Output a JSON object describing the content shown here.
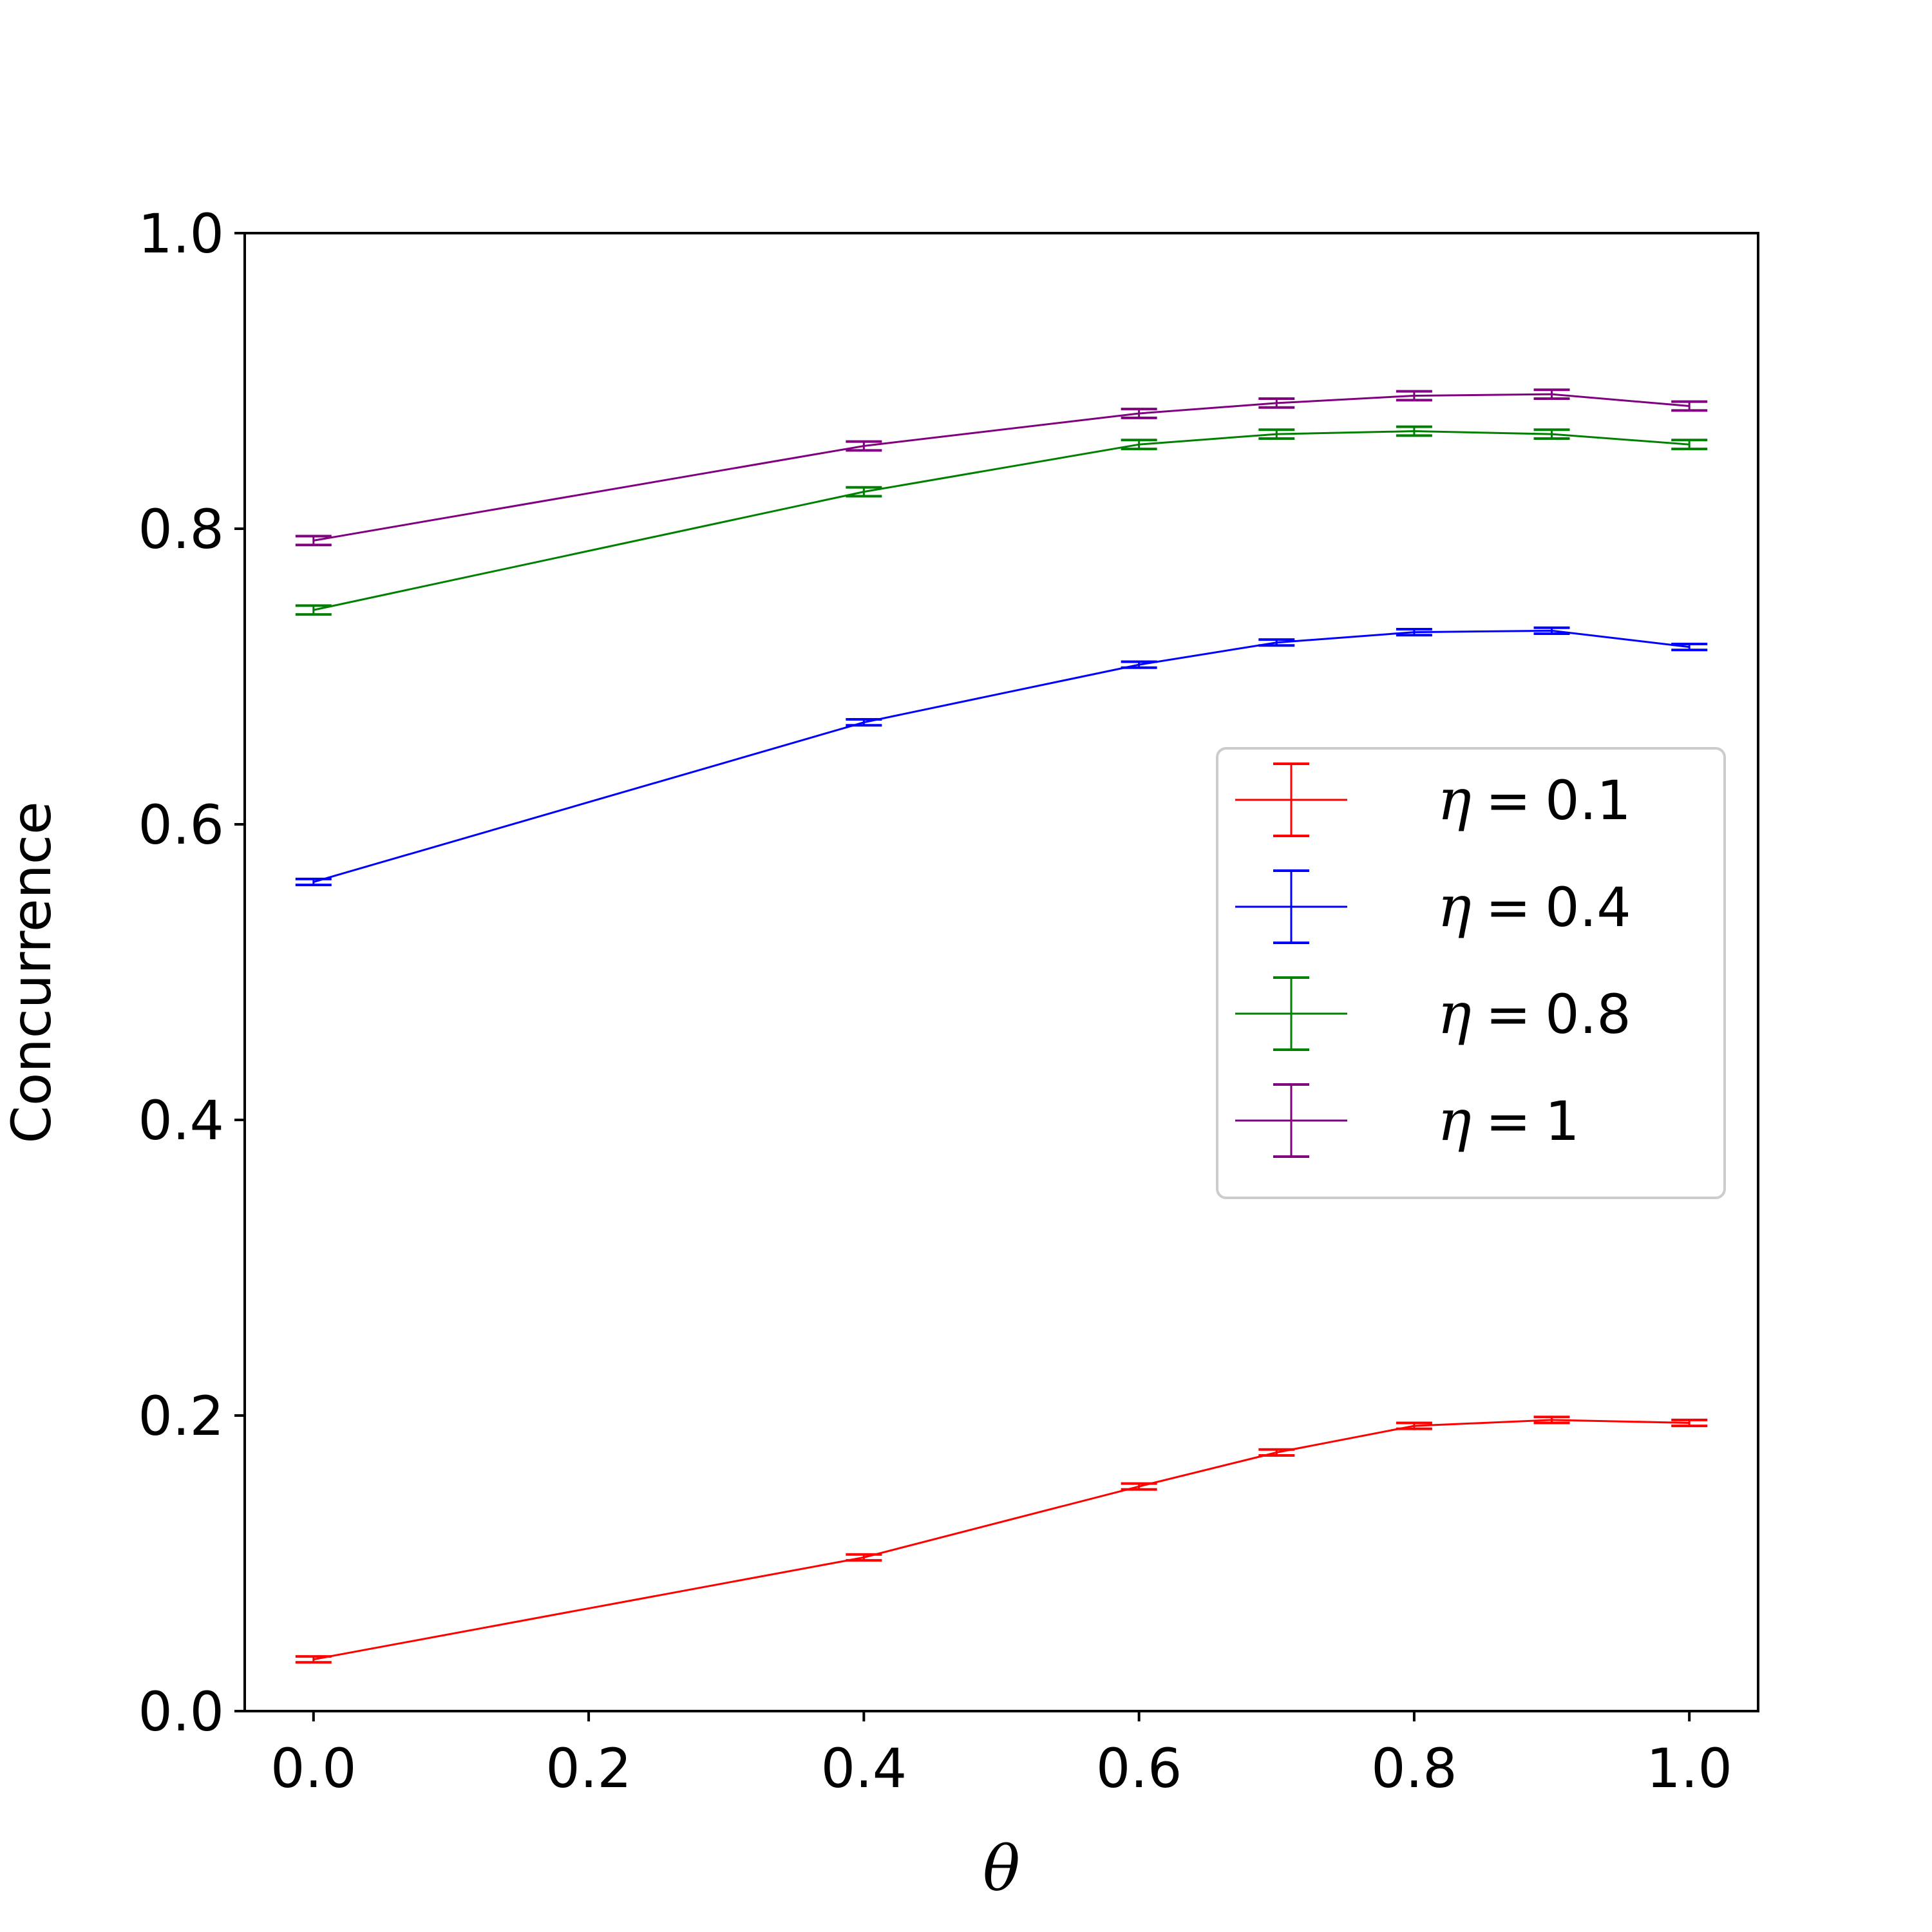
{
  "chart_data": {
    "type": "line",
    "title": "",
    "xlabel": "θ",
    "ylabel": "Concurrence",
    "xlim": [
      -0.05,
      1.05
    ],
    "ylim": [
      0.0,
      1.0
    ],
    "xticks": [
      0.0,
      0.2,
      0.4,
      0.6,
      0.8,
      1.0
    ],
    "yticks": [
      0.0,
      0.2,
      0.4,
      0.6,
      0.8,
      1.0
    ],
    "xtick_labels": [
      "0.0",
      "0.2",
      "0.4",
      "0.6",
      "0.8",
      "1.0"
    ],
    "ytick_labels": [
      "0.0",
      "0.2",
      "0.4",
      "0.6",
      "0.8",
      "1.0"
    ],
    "grid": false,
    "legend_position": "center-right",
    "x": [
      0.0,
      0.4,
      0.6,
      0.7,
      0.8,
      0.9,
      1.0
    ],
    "series": [
      {
        "name": "η = 0.1",
        "symbol": "η",
        "value_text": "0.1",
        "color": "#ff0000",
        "values": [
          0.035,
          0.104,
          0.152,
          0.175,
          0.193,
          0.197,
          0.195
        ],
        "error": 0.002
      },
      {
        "name": "η = 0.4",
        "symbol": "η",
        "value_text": "0.4",
        "color": "#0000ff",
        "values": [
          0.561,
          0.669,
          0.708,
          0.723,
          0.73,
          0.731,
          0.72
        ],
        "error": 0.002
      },
      {
        "name": "η = 0.8",
        "symbol": "η",
        "value_text": "0.8",
        "color": "#008000",
        "values": [
          0.745,
          0.825,
          0.857,
          0.864,
          0.866,
          0.864,
          0.857
        ],
        "error": 0.003
      },
      {
        "name": "η = 1",
        "symbol": "η",
        "value_text": "1",
        "color": "#800080",
        "values": [
          0.792,
          0.856,
          0.878,
          0.885,
          0.89,
          0.891,
          0.883
        ],
        "error": 0.003
      }
    ]
  }
}
